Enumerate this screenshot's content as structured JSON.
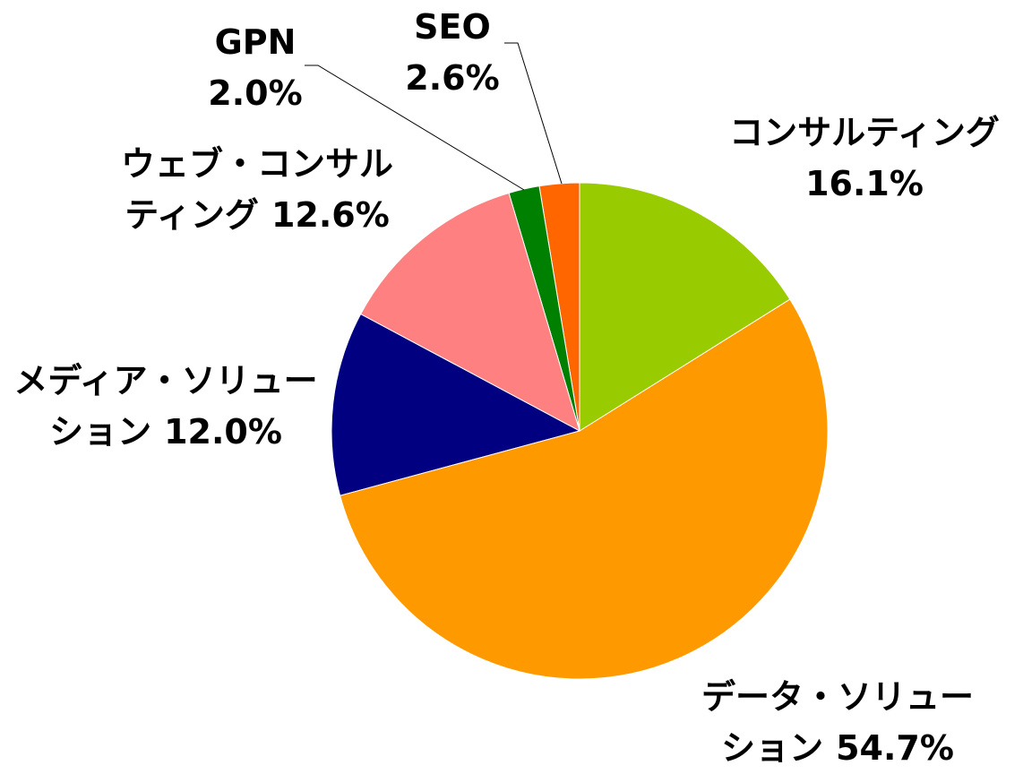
{
  "chart_data": {
    "type": "pie",
    "categories": [
      "コンサルティング",
      "データ・ソリューション",
      "メディア・ソリューション",
      "ウェブ・コンサルティング",
      "GPN",
      "SEO"
    ],
    "values": [
      16.1,
      54.7,
      12.0,
      12.6,
      2.0,
      2.6
    ],
    "value_labels": [
      "16.1%",
      "54.7%",
      "12.0%",
      "12.6%",
      "2.0%",
      "2.6%"
    ],
    "colors": [
      "#99cc00",
      "#ff9900",
      "#000080",
      "#ff8080",
      "#008000",
      "#ff6600"
    ]
  }
}
